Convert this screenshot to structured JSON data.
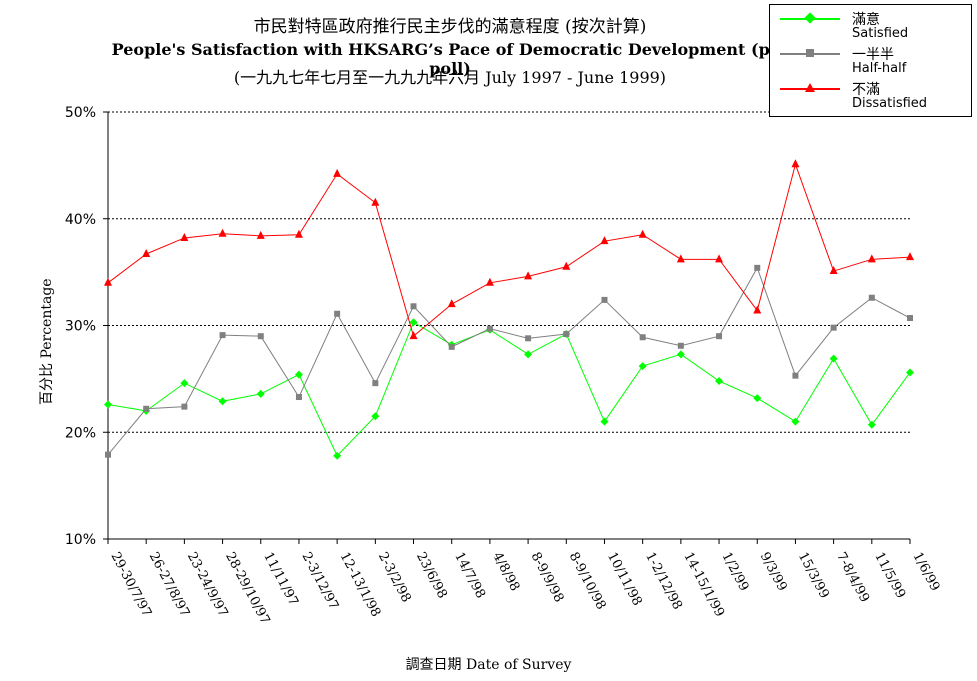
{
  "title": {
    "line1": "市民對特區政府推行民主步伐的滿意程度 (按次計算)",
    "line2": "People's Satisfaction with HKSARG’s Pace of Democratic Development  (per poll)",
    "line3": "(一九九七年七月至一九九九年六月 July 1997 - June 1999)"
  },
  "axes": {
    "ylabel": "百分比 Percentage",
    "xlabel": "調查日期 Date of Survey"
  },
  "legend": {
    "items": [
      {
        "zh": "滿意",
        "en": "Satisfied",
        "color": "#00ff00",
        "marker": "diamond"
      },
      {
        "zh": "一半半",
        "en": "Half-half",
        "color": "#808080",
        "marker": "square"
      },
      {
        "zh": "不滿",
        "en": "Dissatisfied",
        "color": "#ff0000",
        "marker": "triangle"
      }
    ]
  },
  "chart_data": {
    "type": "line",
    "categories": [
      "29-30/7/97",
      "26-27/8/97",
      "23-24/9/97",
      "28-29/10/97",
      "11/11/97",
      "2-3/12/97",
      "12-13/1/98",
      "2-3/2/98",
      "23/6/98",
      "14/7/98",
      "4/8/98",
      "8-9/9/98",
      "8-9/10/98",
      "10/11/98",
      "1-2/12/98",
      "14-15/1/99",
      "1/2/99",
      "9/3/99",
      "15/3/99",
      "7-8/4/99",
      "11/5/99",
      "1/6/99"
    ],
    "yticks": [
      "10%",
      "20%",
      "30%",
      "40%",
      "50%"
    ],
    "ylim": [
      10,
      50
    ],
    "grid": true,
    "legend_position": "top-right",
    "series": [
      {
        "name": "滿意 Satisfied",
        "color": "#00ff00",
        "marker": "diamond",
        "values": [
          22.6,
          22.0,
          24.6,
          22.9,
          23.6,
          25.4,
          17.8,
          21.5,
          30.3,
          28.2,
          29.6,
          27.3,
          29.2,
          21.0,
          26.2,
          27.3,
          24.8,
          23.2,
          21.0,
          26.9,
          20.7,
          25.6
        ]
      },
      {
        "name": "一半半 Half-half",
        "color": "#808080",
        "marker": "square",
        "values": [
          17.9,
          22.2,
          22.4,
          29.1,
          29.0,
          23.3,
          31.1,
          24.6,
          31.8,
          28.0,
          29.7,
          28.8,
          29.2,
          32.4,
          28.9,
          28.1,
          29.0,
          35.4,
          25.3,
          29.8,
          32.6,
          30.7
        ]
      },
      {
        "name": "不滿 Dissatisfied",
        "color": "#ff0000",
        "marker": "triangle",
        "values": [
          34.0,
          36.7,
          38.2,
          38.6,
          38.4,
          38.5,
          44.2,
          41.5,
          29.0,
          32.0,
          34.0,
          34.6,
          35.5,
          37.9,
          38.5,
          36.2,
          36.2,
          31.4,
          45.1,
          35.1,
          36.2,
          36.4
        ]
      }
    ]
  }
}
